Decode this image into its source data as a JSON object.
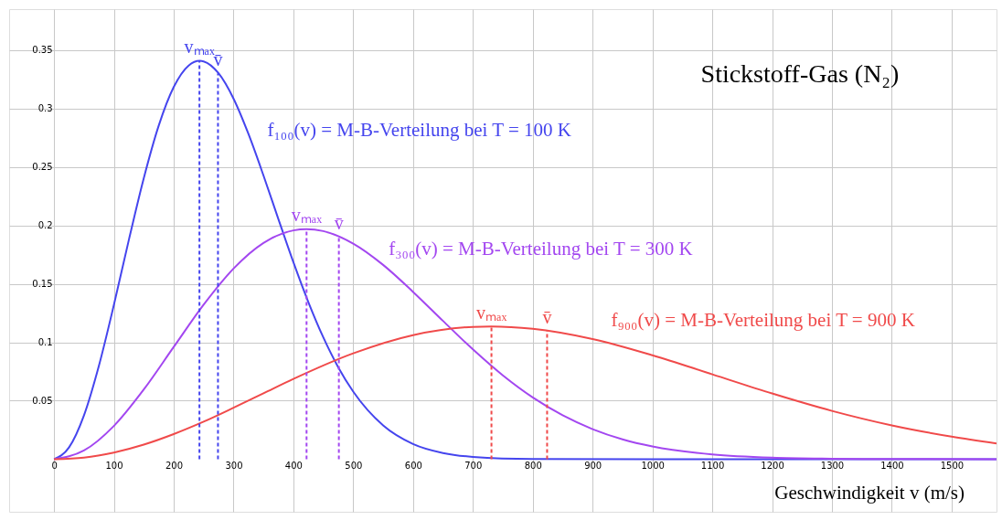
{
  "chart_data": {
    "type": "line",
    "title": "Stickstoff-Gas (N₂)",
    "xlabel": "Geschwindigkeit v  (m/s)",
    "xlim": [
      -75,
      1575
    ],
    "ylim": [
      -0.045,
      0.385
    ],
    "xticks": [
      0,
      100,
      200,
      300,
      400,
      500,
      600,
      700,
      800,
      900,
      1000,
      1100,
      1200,
      1300,
      1400,
      1500
    ],
    "yticks": [
      0.05,
      0.1,
      0.15,
      0.2,
      0.25,
      0.3,
      0.35
    ],
    "grid": true,
    "marker": "none",
    "line_style": "solid",
    "series": [
      {
        "name": "f₁₀₀(v) = M-B-Verteilung bei T = 100 K",
        "color": "#4545ee",
        "x": [
          0,
          25,
          50,
          75,
          100,
          125,
          150,
          175,
          200,
          225,
          243.6,
          250,
          275,
          300,
          325,
          350,
          375,
          400,
          425,
          450,
          475,
          500,
          550,
          600,
          650,
          700,
          800,
          1000,
          1200,
          1400,
          1575
        ],
        "values": [
          0,
          0.01,
          0.0374,
          0.0799,
          0.1319,
          0.1875,
          0.2404,
          0.2854,
          0.3183,
          0.3368,
          0.3408,
          0.3403,
          0.3301,
          0.3084,
          0.2781,
          0.2427,
          0.2053,
          0.1685,
          0.1344,
          0.1042,
          0.0786,
          0.0578,
          0.0289,
          0.013,
          0.0053,
          0.002,
          0.0002,
          0,
          0,
          0,
          0
        ]
      },
      {
        "name": "f₃₀₀(v) = M-B-Verteilung bei T = 300 K",
        "color": "#a347f0",
        "x": [
          0,
          50,
          100,
          150,
          200,
          250,
          300,
          350,
          400,
          421.9,
          450,
          500,
          550,
          600,
          650,
          700,
          750,
          800,
          850,
          900,
          950,
          1000,
          1100,
          1200,
          1300,
          1400,
          1575
        ],
        "values": [
          0,
          0.0074,
          0.0284,
          0.0596,
          0.096,
          0.1322,
          0.1631,
          0.185,
          0.1957,
          0.1968,
          0.1951,
          0.1844,
          0.1662,
          0.1431,
          0.1183,
          0.0939,
          0.0717,
          0.0528,
          0.0375,
          0.0257,
          0.017,
          0.0109,
          0.0041,
          0.0013,
          0.0004,
          0.0001,
          0
        ]
      },
      {
        "name": "f₉₀₀(v) = M-B-Verteilung bei T = 900 K",
        "color": "#f04a4a",
        "x": [
          0,
          50,
          100,
          150,
          200,
          250,
          300,
          350,
          400,
          500,
          600,
          700,
          730.8,
          800,
          900,
          1000,
          1100,
          1200,
          1300,
          1400,
          1500,
          1575
        ],
        "values": [
          0,
          0.0014,
          0.0057,
          0.0125,
          0.0215,
          0.0321,
          0.044,
          0.0563,
          0.0686,
          0.0905,
          0.1061,
          0.1132,
          0.1136,
          0.1116,
          0.1028,
          0.0889,
          0.0726,
          0.0562,
          0.0413,
          0.0289,
          0.0193,
          0.0135
        ]
      },
      {
        "name": "vₘₐₓ",
        "color": "#4545ee",
        "line_style": "dashed",
        "x": [
          243,
          243
        ],
        "values": [
          0,
          0.341
        ]
      },
      {
        "name": "v̄",
        "color": "#4545ee",
        "line_style": "dashed",
        "x": [
          274,
          274
        ],
        "values": [
          0,
          0.33
        ]
      },
      {
        "name": "vₘₐₓ",
        "color": "#a347f0",
        "line_style": "dashed",
        "x": [
          422,
          422
        ],
        "values": [
          0,
          0.197
        ]
      },
      {
        "name": "v̄",
        "color": "#a347f0",
        "line_style": "dashed",
        "x": [
          476,
          476
        ],
        "values": [
          0,
          0.19
        ]
      },
      {
        "name": "vₘₐₓ",
        "color": "#f04a4a",
        "line_style": "dashed",
        "x": [
          731,
          731
        ],
        "values": [
          0,
          0.1136
        ]
      },
      {
        "name": "v̄",
        "color": "#f04a4a",
        "line_style": "dashed",
        "x": [
          824,
          824
        ],
        "values": [
          0,
          0.11
        ]
      }
    ]
  }
}
